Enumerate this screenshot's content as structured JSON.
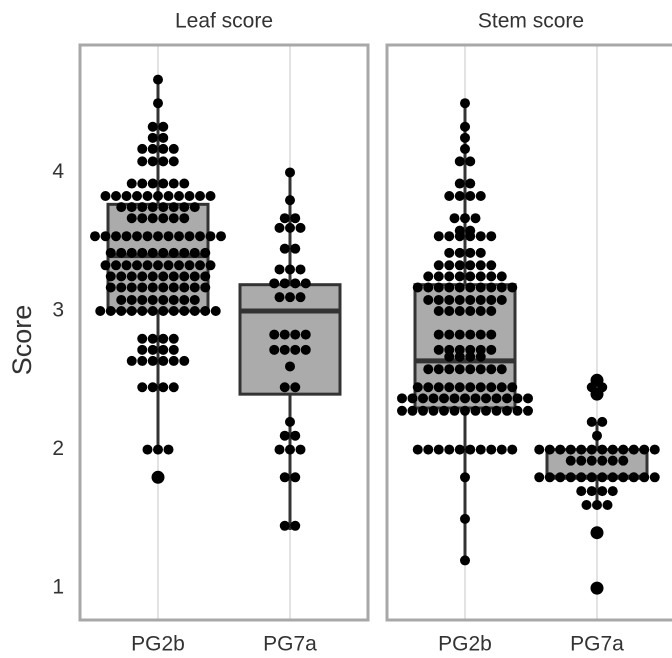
{
  "chart_data": [
    {
      "type": "box",
      "title": "Leaf score",
      "ylabel": "Score",
      "categories": [
        "PG2b",
        "PG7a"
      ],
      "ylim": [
        0.77,
        4.92
      ],
      "yticks": [
        1,
        2,
        3,
        4
      ],
      "grid": "x",
      "box_color": "#ababab",
      "line_color": "#333333",
      "point_color": "#000000",
      "boxes": [
        {
          "min": 2.0,
          "q1": 3.0,
          "median": 3.4,
          "q3": 3.77,
          "max": 4.67,
          "outliers": [
            1.8
          ],
          "points": [
            4.67,
            4.5,
            4.33,
            4.33,
            4.25,
            4.25,
            4.17,
            4.17,
            4.17,
            4.17,
            4.08,
            4.08,
            4.08,
            4.08,
            3.92,
            3.92,
            3.92,
            3.92,
            3.92,
            3.92,
            3.83,
            3.83,
            3.83,
            3.83,
            3.83,
            3.83,
            3.83,
            3.83,
            3.83,
            3.83,
            3.83,
            3.75,
            3.75,
            3.75,
            3.75,
            3.75,
            3.75,
            3.75,
            3.75,
            3.67,
            3.67,
            3.67,
            3.67,
            3.67,
            3.67,
            3.54,
            3.54,
            3.54,
            3.54,
            3.54,
            3.54,
            3.54,
            3.54,
            3.54,
            3.54,
            3.54,
            3.54,
            3.54,
            3.42,
            3.42,
            3.42,
            3.42,
            3.42,
            3.42,
            3.42,
            3.42,
            3.42,
            3.42,
            3.33,
            3.33,
            3.33,
            3.33,
            3.33,
            3.33,
            3.33,
            3.33,
            3.33,
            3.33,
            3.33,
            3.25,
            3.25,
            3.25,
            3.25,
            3.25,
            3.25,
            3.25,
            3.25,
            3.25,
            3.25,
            3.17,
            3.17,
            3.17,
            3.17,
            3.17,
            3.17,
            3.17,
            3.17,
            3.17,
            3.17,
            3.08,
            3.08,
            3.08,
            3.08,
            3.08,
            3.08,
            3.08,
            3.08,
            3.0,
            3.0,
            3.0,
            3.0,
            3.0,
            3.0,
            3.0,
            3.0,
            3.0,
            3.0,
            3.0,
            3.0,
            2.8,
            2.8,
            2.8,
            2.8,
            2.72,
            2.72,
            2.72,
            2.72,
            2.64,
            2.64,
            2.64,
            2.64,
            2.64,
            2.64,
            2.45,
            2.45,
            2.45,
            2.45,
            2.0,
            2.0,
            2.0
          ]
        },
        {
          "min": 1.42,
          "q1": 2.4,
          "median": 3.0,
          "q3": 3.19,
          "max": 4.0,
          "outliers": [],
          "points": [
            4.0,
            3.8,
            3.67,
            3.67,
            3.6,
            3.6,
            3.6,
            3.45,
            3.45,
            3.3,
            3.3,
            3.3,
            3.2,
            3.2,
            3.2,
            3.2,
            3.1,
            3.1,
            3.1,
            2.83,
            2.83,
            2.83,
            2.83,
            2.72,
            2.72,
            2.72,
            2.72,
            2.6,
            2.45,
            2.45,
            2.2,
            2.1,
            2.1,
            2.0,
            2.0,
            2.0,
            1.8,
            1.8,
            1.45,
            1.45
          ]
        }
      ]
    },
    {
      "type": "box",
      "title": "Stem score",
      "categories": [
        "PG2b",
        "PG7a"
      ],
      "ylim": [
        0.77,
        4.92
      ],
      "grid": "x",
      "box_color": "#ababab",
      "line_color": "#333333",
      "point_color": "#000000",
      "boxes": [
        {
          "min": 1.2,
          "q1": 2.3,
          "median": 2.64,
          "q3": 3.19,
          "max": 4.5,
          "outliers": [],
          "points": [
            4.5,
            4.33,
            4.25,
            4.17,
            4.08,
            4.08,
            3.92,
            3.92,
            3.83,
            3.83,
            3.83,
            3.83,
            3.67,
            3.67,
            3.67,
            3.58,
            3.58,
            3.54,
            3.54,
            3.54,
            3.54,
            3.54,
            3.54,
            3.42,
            3.42,
            3.42,
            3.42,
            3.33,
            3.33,
            3.33,
            3.33,
            3.33,
            3.33,
            3.25,
            3.25,
            3.25,
            3.25,
            3.25,
            3.25,
            3.25,
            3.25,
            3.17,
            3.17,
            3.17,
            3.17,
            3.17,
            3.17,
            3.17,
            3.17,
            3.17,
            3.17,
            3.08,
            3.08,
            3.08,
            3.08,
            3.08,
            3.08,
            3.08,
            3.08,
            3.0,
            3.0,
            3.0,
            3.0,
            3.0,
            3.0,
            2.83,
            2.83,
            2.83,
            2.83,
            2.83,
            2.83,
            2.72,
            2.72,
            2.72,
            2.72,
            2.72,
            2.72,
            2.67,
            2.67,
            2.67,
            2.67,
            2.58,
            2.58,
            2.58,
            2.58,
            2.58,
            2.58,
            2.58,
            2.58,
            2.45,
            2.45,
            2.45,
            2.45,
            2.45,
            2.45,
            2.45,
            2.45,
            2.45,
            2.45,
            2.37,
            2.37,
            2.37,
            2.37,
            2.37,
            2.37,
            2.37,
            2.37,
            2.37,
            2.37,
            2.37,
            2.37,
            2.37,
            2.28,
            2.28,
            2.28,
            2.28,
            2.28,
            2.28,
            2.28,
            2.28,
            2.28,
            2.28,
            2.28,
            2.28,
            2.28,
            2.0,
            2.0,
            2.0,
            2.0,
            2.0,
            2.0,
            2.0,
            2.0,
            2.0,
            2.0,
            1.8,
            1.5,
            1.2
          ]
        },
        {
          "min": 1.6,
          "q1": 1.8,
          "median": 1.8,
          "q3": 2.0,
          "max": 2.2,
          "outliers": [
            2.5,
            2.4,
            1.4,
            1.0
          ],
          "points": [
            2.45,
            2.45,
            2.2,
            2.2,
            2.1,
            2.0,
            2.0,
            2.0,
            2.0,
            2.0,
            2.0,
            2.0,
            2.0,
            2.0,
            2.0,
            2.0,
            2.0,
            1.92,
            1.92,
            1.92,
            1.92,
            1.92,
            1.92,
            1.8,
            1.8,
            1.8,
            1.8,
            1.8,
            1.8,
            1.8,
            1.8,
            1.8,
            1.8,
            1.8,
            1.8,
            1.7,
            1.7,
            1.7,
            1.7,
            1.6,
            1.6,
            1.6
          ]
        }
      ]
    }
  ]
}
